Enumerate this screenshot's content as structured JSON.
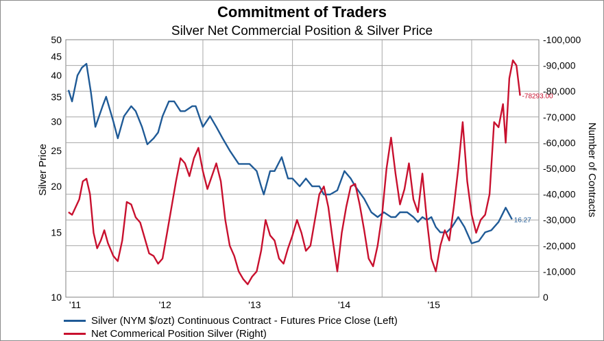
{
  "colors": {
    "silver": "#1f5a96",
    "net": "#c8102e",
    "grid": "#a6a6a6",
    "axis": "#808080"
  },
  "chart_data": {
    "type": "line",
    "title": "Commitment of Traders",
    "subtitle": "Silver Net Commercial Position & Silver Price",
    "ylabel_left": "Silver Price",
    "ylabel_right": "Number of Contracts",
    "left_axis": {
      "scale": "log",
      "ylim": [
        10,
        50
      ],
      "ticks": [
        "10",
        "15",
        "20",
        "25",
        "30",
        "35",
        "40",
        "45",
        "50"
      ]
    },
    "right_axis": {
      "inverted": true,
      "ylim": [
        0,
        -100000
      ],
      "ticks": [
        "0",
        "-10,000",
        "-20,000",
        "-30,000",
        "-40,000",
        "-50,000",
        "-60,000",
        "-70,000",
        "-80,000",
        "-90,000",
        "-100,000"
      ]
    },
    "x_ticks": [
      "'11",
      "'12",
      "'13",
      "'14",
      "'15"
    ],
    "grid": true,
    "legend_position": "bottom",
    "series": [
      {
        "name": "Silver (NYM $/ozt) Continuous Contract - Futures Price Close  (Left)",
        "axis": "left",
        "end_label": "16.27",
        "points": [
          [
            2011.0,
            36.5
          ],
          [
            2011.04,
            34
          ],
          [
            2011.1,
            40
          ],
          [
            2011.15,
            42
          ],
          [
            2011.2,
            43
          ],
          [
            2011.25,
            36
          ],
          [
            2011.3,
            29
          ],
          [
            2011.38,
            33
          ],
          [
            2011.42,
            35
          ],
          [
            2011.5,
            30
          ],
          [
            2011.55,
            27
          ],
          [
            2011.62,
            31
          ],
          [
            2011.7,
            33
          ],
          [
            2011.75,
            32
          ],
          [
            2011.82,
            29
          ],
          [
            2011.88,
            26
          ],
          [
            2011.95,
            27
          ],
          [
            2012.0,
            28
          ],
          [
            2012.05,
            31
          ],
          [
            2012.12,
            34
          ],
          [
            2012.18,
            34
          ],
          [
            2012.25,
            32
          ],
          [
            2012.3,
            32
          ],
          [
            2012.38,
            33
          ],
          [
            2012.42,
            33
          ],
          [
            2012.5,
            29
          ],
          [
            2012.58,
            31
          ],
          [
            2012.65,
            29
          ],
          [
            2012.72,
            27
          ],
          [
            2012.8,
            25
          ],
          [
            2012.9,
            23
          ],
          [
            2012.95,
            23
          ],
          [
            2013.02,
            23
          ],
          [
            2013.1,
            22
          ],
          [
            2013.15,
            20
          ],
          [
            2013.18,
            19
          ],
          [
            2013.25,
            22
          ],
          [
            2013.3,
            22
          ],
          [
            2013.38,
            24
          ],
          [
            2013.45,
            21
          ],
          [
            2013.5,
            21
          ],
          [
            2013.58,
            20
          ],
          [
            2013.65,
            21
          ],
          [
            2013.72,
            20
          ],
          [
            2013.8,
            20
          ],
          [
            2013.85,
            19
          ],
          [
            2013.92,
            19
          ],
          [
            2014.0,
            19.5
          ],
          [
            2014.08,
            22
          ],
          [
            2014.15,
            21
          ],
          [
            2014.2,
            20
          ],
          [
            2014.3,
            18.5
          ],
          [
            2014.38,
            17
          ],
          [
            2014.45,
            16.5
          ],
          [
            2014.52,
            17
          ],
          [
            2014.6,
            16.5
          ],
          [
            2014.65,
            16.5
          ],
          [
            2014.7,
            17
          ],
          [
            2014.78,
            17
          ],
          [
            2014.85,
            16.5
          ],
          [
            2014.9,
            16
          ],
          [
            2014.95,
            16.5
          ],
          [
            2015.0,
            16.2
          ],
          [
            2015.05,
            16.5
          ],
          [
            2015.1,
            15.5
          ],
          [
            2015.15,
            15
          ],
          [
            2015.22,
            15
          ],
          [
            2015.28,
            15.5
          ],
          [
            2015.35,
            16.5
          ],
          [
            2015.42,
            15.5
          ],
          [
            2015.5,
            14
          ],
          [
            2015.58,
            14.2
          ],
          [
            2015.65,
            15
          ],
          [
            2015.72,
            15.2
          ],
          [
            2015.8,
            16
          ],
          [
            2015.88,
            17.5
          ],
          [
            2015.95,
            16.27
          ]
        ]
      },
      {
        "name": "Net Commerical Position Silver (Right)",
        "axis": "right",
        "end_label": "-78293.00",
        "points": [
          [
            2011.0,
            -33000
          ],
          [
            2011.04,
            -32000
          ],
          [
            2011.08,
            -35000
          ],
          [
            2011.12,
            -38000
          ],
          [
            2011.16,
            -45000
          ],
          [
            2011.2,
            -46000
          ],
          [
            2011.24,
            -40000
          ],
          [
            2011.28,
            -25000
          ],
          [
            2011.32,
            -19000
          ],
          [
            2011.36,
            -22000
          ],
          [
            2011.4,
            -26000
          ],
          [
            2011.44,
            -21000
          ],
          [
            2011.5,
            -16000
          ],
          [
            2011.55,
            -14000
          ],
          [
            2011.6,
            -22000
          ],
          [
            2011.65,
            -37000
          ],
          [
            2011.7,
            -36000
          ],
          [
            2011.75,
            -31000
          ],
          [
            2011.8,
            -29000
          ],
          [
            2011.85,
            -23000
          ],
          [
            2011.9,
            -17000
          ],
          [
            2011.95,
            -16000
          ],
          [
            2012.0,
            -13000
          ],
          [
            2012.05,
            -15000
          ],
          [
            2012.1,
            -25000
          ],
          [
            2012.15,
            -35000
          ],
          [
            2012.2,
            -45000
          ],
          [
            2012.25,
            -54000
          ],
          [
            2012.3,
            -52000
          ],
          [
            2012.35,
            -47000
          ],
          [
            2012.4,
            -54000
          ],
          [
            2012.45,
            -58000
          ],
          [
            2012.5,
            -49000
          ],
          [
            2012.55,
            -42000
          ],
          [
            2012.6,
            -47000
          ],
          [
            2012.65,
            -52000
          ],
          [
            2012.7,
            -45000
          ],
          [
            2012.75,
            -30000
          ],
          [
            2012.8,
            -20000
          ],
          [
            2012.85,
            -16000
          ],
          [
            2012.9,
            -10000
          ],
          [
            2012.95,
            -7000
          ],
          [
            2013.0,
            -5000
          ],
          [
            2013.05,
            -8000
          ],
          [
            2013.1,
            -10000
          ],
          [
            2013.15,
            -18000
          ],
          [
            2013.2,
            -30000
          ],
          [
            2013.25,
            -24000
          ],
          [
            2013.3,
            -22000
          ],
          [
            2013.35,
            -15000
          ],
          [
            2013.4,
            -13000
          ],
          [
            2013.45,
            -19000
          ],
          [
            2013.5,
            -24000
          ],
          [
            2013.55,
            -30000
          ],
          [
            2013.6,
            -25000
          ],
          [
            2013.65,
            -18000
          ],
          [
            2013.7,
            -20000
          ],
          [
            2013.75,
            -30000
          ],
          [
            2013.8,
            -40000
          ],
          [
            2013.85,
            -43000
          ],
          [
            2013.9,
            -35000
          ],
          [
            2013.95,
            -22000
          ],
          [
            2014.0,
            -10000
          ],
          [
            2014.05,
            -25000
          ],
          [
            2014.1,
            -35000
          ],
          [
            2014.15,
            -43000
          ],
          [
            2014.2,
            -44000
          ],
          [
            2014.25,
            -36000
          ],
          [
            2014.3,
            -26000
          ],
          [
            2014.35,
            -15000
          ],
          [
            2014.4,
            -12000
          ],
          [
            2014.45,
            -20000
          ],
          [
            2014.5,
            -32000
          ],
          [
            2014.55,
            -50000
          ],
          [
            2014.6,
            -62000
          ],
          [
            2014.65,
            -48000
          ],
          [
            2014.7,
            -36000
          ],
          [
            2014.75,
            -42000
          ],
          [
            2014.8,
            -52000
          ],
          [
            2014.85,
            -38000
          ],
          [
            2014.9,
            -33000
          ],
          [
            2014.95,
            -48000
          ],
          [
            2015.0,
            -30000
          ],
          [
            2015.05,
            -15000
          ],
          [
            2015.1,
            -10000
          ],
          [
            2015.15,
            -20000
          ],
          [
            2015.2,
            -26000
          ],
          [
            2015.25,
            -22000
          ],
          [
            2015.3,
            -35000
          ],
          [
            2015.35,
            -50000
          ],
          [
            2015.4,
            -68000
          ],
          [
            2015.45,
            -45000
          ],
          [
            2015.5,
            -32000
          ],
          [
            2015.55,
            -25000
          ],
          [
            2015.6,
            -30000
          ],
          [
            2015.65,
            -32000
          ],
          [
            2015.7,
            -40000
          ],
          [
            2015.75,
            -68000
          ],
          [
            2015.8,
            -66000
          ],
          [
            2015.85,
            -75000
          ],
          [
            2015.88,
            -60000
          ],
          [
            2015.92,
            -85000
          ],
          [
            2015.96,
            -92000
          ],
          [
            2016.0,
            -90000
          ],
          [
            2016.04,
            -78293
          ]
        ]
      }
    ]
  }
}
